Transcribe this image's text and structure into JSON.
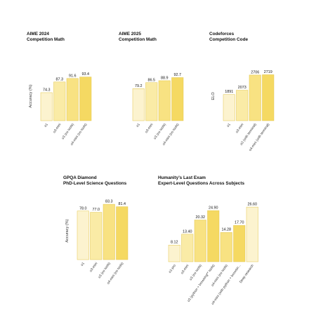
{
  "chart_data": [
    {
      "type": "bar",
      "title": "AIME 2024",
      "subtitle": "Competition Math",
      "ylabel": "Accuracy (%)",
      "categories": [
        "o1",
        "o3-mini",
        "o3 (no tools)",
        "o4-mini (no tools)"
      ],
      "values": [
        74.3,
        87.3,
        91.6,
        93.4
      ],
      "value_labels": [
        "74.3",
        "87.3",
        "91.6",
        "93.4"
      ],
      "ylim": [
        40,
        100
      ],
      "colors": [
        "#fcf3cf",
        "#faeba6",
        "#f8e282",
        "#f5d962"
      ]
    },
    {
      "type": "bar",
      "title": "AIME 2025",
      "subtitle": "Competition Math",
      "ylabel": "",
      "categories": [
        "o1",
        "o3-mini",
        "o3 (no tools)",
        "o4-mini (no tools)"
      ],
      "values": [
        79.2,
        86.5,
        88.9,
        92.7
      ],
      "value_labels": [
        "79.2",
        "86.5",
        "88.9",
        "92.7"
      ],
      "ylim": [
        40,
        100
      ],
      "colors": [
        "#fcf3cf",
        "#faeba6",
        "#f8e282",
        "#f5d962"
      ]
    },
    {
      "type": "bar",
      "title": "Codeforces",
      "subtitle": "Competition Code",
      "ylabel": "ELO",
      "categories": [
        "o1",
        "o3-mini",
        "o3 (with terminal)",
        "o4-mini (with terminal)"
      ],
      "values": [
        1891,
        2073,
        2706,
        2719
      ],
      "value_labels": [
        "1891",
        "2073",
        "2706",
        "2719"
      ],
      "ylim": [
        800,
        2850
      ],
      "colors": [
        "#fcf3cf",
        "#faeba6",
        "#f8e282",
        "#f5d962"
      ]
    },
    {
      "type": "bar",
      "title": "GPQA Diamond",
      "subtitle": "PhD-Level Science Questions",
      "ylabel": "Accuracy (%)",
      "categories": [
        "o1",
        "o3-mini",
        "o3 (no tools)",
        "o4-mini (no tools)"
      ],
      "values": [
        78.0,
        77.0,
        83.3,
        81.4
      ],
      "value_labels": [
        "78.0",
        "77.0",
        "83.3",
        "81.4"
      ],
      "ylim": [
        40,
        85
      ],
      "colors": [
        "#fcf3cf",
        "#faeba6",
        "#f8e282",
        "#f5d962"
      ]
    },
    {
      "type": "bar",
      "title": "Humanity’s Last Exam",
      "subtitle": "Expert-Level Questions Across Subjects",
      "ylabel": "",
      "categories": [
        "o1-pro",
        "o3-mini",
        "o3 (no tools)",
        "o3 (python + browsing** tools)",
        "o4-mini (no tools)",
        "o4-mini (with python + browsin...",
        "Deep research"
      ],
      "values": [
        8.12,
        13.4,
        20.32,
        24.9,
        14.28,
        17.7,
        26.6
      ],
      "value_labels": [
        "8.12",
        "13.40",
        "20.32",
        "24.90",
        "14.28",
        "17.70",
        "26.60"
      ],
      "ylim": [
        0,
        28
      ],
      "colors": [
        "#fcf3cf",
        "#faeba6",
        "#f8e282",
        "#f5d962",
        "#f8e282",
        "#f5d962",
        "#fcf3cf"
      ]
    }
  ]
}
